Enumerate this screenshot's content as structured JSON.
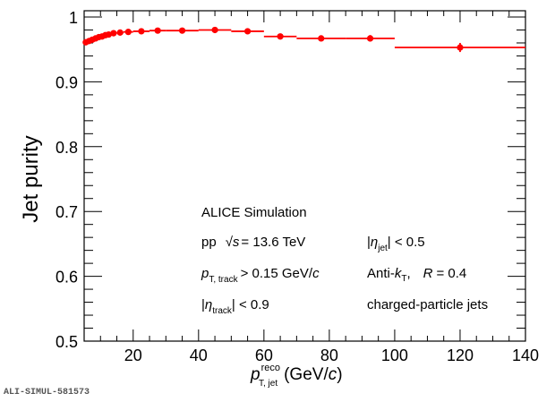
{
  "chart_data": {
    "type": "scatter",
    "title": "",
    "xlabel": "p_T,jet^reco (GeV/c)",
    "xlabel_parts": {
      "symbol": "p",
      "sub": "T, jet",
      "sup": "reco",
      "unit_open": "(GeV/",
      "unit_c": "c",
      "unit_close": ")"
    },
    "ylabel": "Jet purity",
    "xlim": [
      5,
      140
    ],
    "ylim": [
      0.5,
      1.01
    ],
    "grid": false,
    "x_ticks": [
      20,
      40,
      60,
      80,
      100,
      120,
      140
    ],
    "x_tick_labels": [
      "20",
      "40",
      "60",
      "80",
      "100",
      "120",
      "140"
    ],
    "y_ticks": [
      0.5,
      0.6,
      0.7,
      0.8,
      0.9,
      1.0
    ],
    "y_tick_labels": [
      "0.5",
      "0.6",
      "0.7",
      "0.8",
      "0.9",
      "1"
    ],
    "series": [
      {
        "name": "Jet purity",
        "color": "#ff0000",
        "points": [
          {
            "x": 5.5,
            "xlo": 5,
            "xhi": 6,
            "y": 0.961,
            "err": 0.001
          },
          {
            "x": 6.5,
            "xlo": 6,
            "xhi": 7,
            "y": 0.963,
            "err": 0.001
          },
          {
            "x": 7.5,
            "xlo": 7,
            "xhi": 8,
            "y": 0.965,
            "err": 0.001
          },
          {
            "x": 8.5,
            "xlo": 8,
            "xhi": 9,
            "y": 0.967,
            "err": 0.001
          },
          {
            "x": 9.5,
            "xlo": 9,
            "xhi": 10,
            "y": 0.969,
            "err": 0.001
          },
          {
            "x": 10.5,
            "xlo": 10,
            "xhi": 11,
            "y": 0.97,
            "err": 0.001
          },
          {
            "x": 11.5,
            "xlo": 11,
            "xhi": 12,
            "y": 0.972,
            "err": 0.001
          },
          {
            "x": 12.5,
            "xlo": 12,
            "xhi": 13,
            "y": 0.973,
            "err": 0.001
          },
          {
            "x": 14,
            "xlo": 13,
            "xhi": 15,
            "y": 0.975,
            "err": 0.001
          },
          {
            "x": 16,
            "xlo": 15,
            "xhi": 17,
            "y": 0.976,
            "err": 0.001
          },
          {
            "x": 18.5,
            "xlo": 17,
            "xhi": 20,
            "y": 0.977,
            "err": 0.001
          },
          {
            "x": 22.5,
            "xlo": 20,
            "xhi": 25,
            "y": 0.978,
            "err": 0.001
          },
          {
            "x": 27.5,
            "xlo": 25,
            "xhi": 30,
            "y": 0.979,
            "err": 0.001
          },
          {
            "x": 35,
            "xlo": 30,
            "xhi": 40,
            "y": 0.979,
            "err": 0.001
          },
          {
            "x": 45,
            "xlo": 40,
            "xhi": 50,
            "y": 0.98,
            "err": 0.002
          },
          {
            "x": 55,
            "xlo": 50,
            "xhi": 60,
            "y": 0.978,
            "err": 0.002
          },
          {
            "x": 65,
            "xlo": 60,
            "xhi": 70,
            "y": 0.97,
            "err": 0.002
          },
          {
            "x": 77.5,
            "xlo": 70,
            "xhi": 85,
            "y": 0.967,
            "err": 0.003
          },
          {
            "x": 92.5,
            "xlo": 85,
            "xhi": 100,
            "y": 0.967,
            "err": 0.005
          },
          {
            "x": 120,
            "xlo": 100,
            "xhi": 140,
            "y": 0.953,
            "err": 0.007
          }
        ]
      }
    ],
    "annotations": {
      "experiment": "ALICE Simulation",
      "system": "pp",
      "sqrt_s": "√s",
      "energy": "= 13.6 TeV",
      "track_pt_sym": "p",
      "track_pt_sub": "T, track",
      "track_pt_cut": "> 0.15 GeV/",
      "track_pt_c": "c",
      "track_eta_open": "|",
      "eta_sym": "η",
      "track_eta_sub": "track",
      "track_eta_cut": "| < 0.9",
      "jet_eta_sub": "jet",
      "jet_eta_cut": "| < 0.5",
      "algo_prefix": "Anti-",
      "algo_k": "k",
      "algo_sub": "T",
      "algo_comma": ",",
      "radius_sym": "R",
      "radius_val": "= 0.4",
      "jet_type": "charged-particle jets"
    }
  },
  "figure_id": "ALI-SIMUL-581573"
}
